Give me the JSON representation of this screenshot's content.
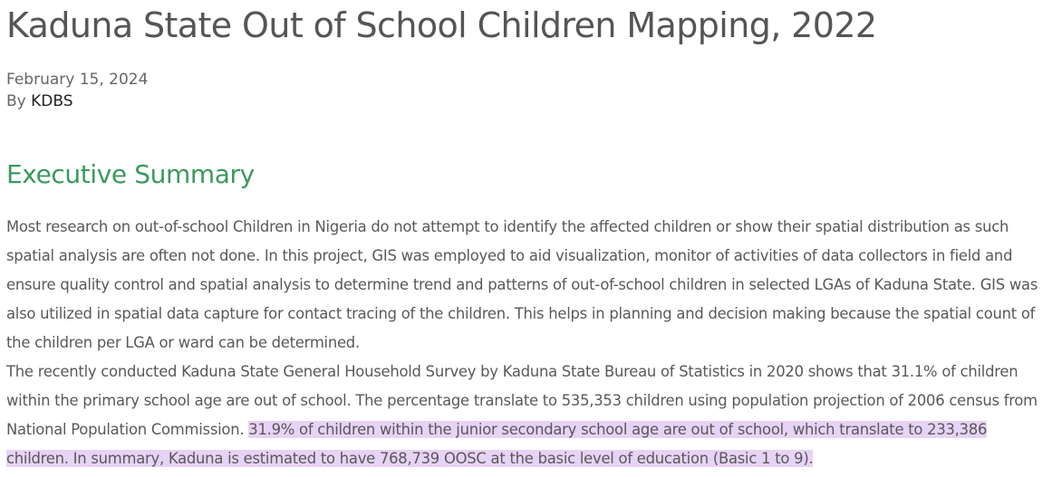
{
  "article": {
    "title": "Kaduna State Out of School Children Mapping, 2022",
    "date": "February 15, 2024",
    "by_label": "By",
    "author": "KDBS"
  },
  "summary": {
    "heading": "Executive Summary",
    "paragraph1": "Most research on out-of-school Children in Nigeria do not attempt to identify the affected children or show their spatial distribution as such spatial analysis are often not done. In this project, GIS was employed to aid visualization, monitor of activities of data collectors in field and ensure quality control and spatial analysis to determine trend and patterns of out-of-school children in selected LGAs of Kaduna State. GIS was also utilized in spatial data capture for contact tracing of the children. This helps in planning and decision making because the spatial count of the children per LGA or ward can be determined.",
    "paragraph2_plain": "The recently conducted Kaduna State General Household Survey by Kaduna State Bureau of Statistics in 2020 shows that 31.1% of children within the primary school age are out of school. The percentage translate to 535,353 children using population projection of 2006 census from National Population Commission. ",
    "paragraph2_highlighted": "31.9% of children within the junior secondary school age are out of school, which translate to 233,386 children. In summary, Kaduna is estimated to have 768,739 OOSC at the basic level of education (Basic 1 to 9).",
    "highlight_color": "#e7d3f5",
    "heading_color": "#3a9a5b"
  }
}
